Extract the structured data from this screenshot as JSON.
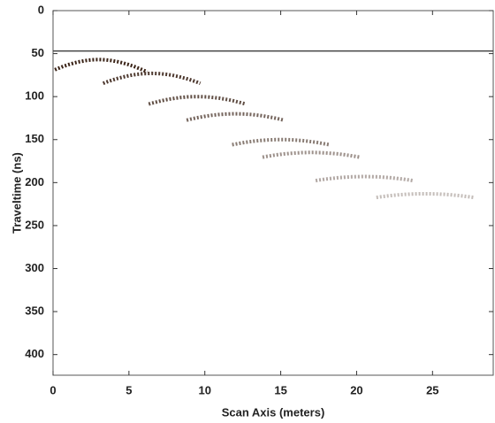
{
  "chart_data": {
    "type": "radargram",
    "x_label": "Scan Axis (meters)",
    "y_label": "Traveltime (ns)",
    "xlim": [
      0,
      29
    ],
    "xticks": [
      0,
      5,
      10,
      15,
      20,
      25
    ],
    "ylim": [
      0,
      424
    ],
    "yticks": [
      0,
      50,
      100,
      150,
      200,
      250,
      300,
      350,
      400
    ],
    "y_reversed": true,
    "direct_wave_time": 47,
    "reflections": {
      "x": [
        3,
        6.5,
        9.5,
        12,
        15,
        17,
        20.5,
        24.5
      ],
      "values": [
        57,
        73,
        100,
        120,
        150,
        165,
        193,
        213
      ]
    },
    "color": "#3b2418"
  }
}
